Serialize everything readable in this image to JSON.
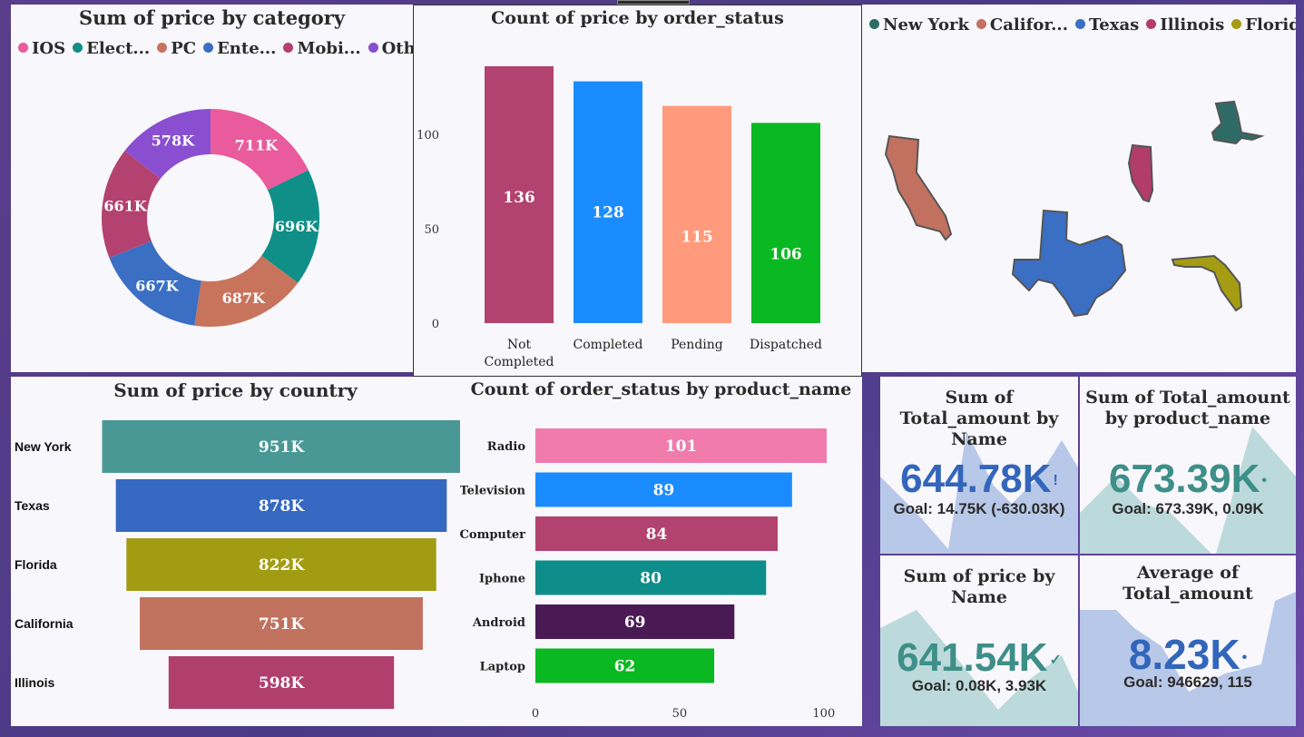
{
  "donut": {
    "title": "Sum of price by category",
    "legend": [
      {
        "label": "IOS",
        "color": "#e95b9c"
      },
      {
        "label": "Elect...",
        "color": "#0f8f87"
      },
      {
        "label": "PC",
        "color": "#c8735c"
      },
      {
        "label": "Ente...",
        "color": "#3a6fc4"
      },
      {
        "label": "Mobi...",
        "color": "#b34270"
      },
      {
        "label": "Other",
        "color": "#8a4fd1"
      }
    ]
  },
  "status_chart": {
    "title": "Count of price by order_status"
  },
  "map": {
    "legend": [
      {
        "label": "New York",
        "color": "#2f6b66"
      },
      {
        "label": "Califor...",
        "color": "#c27160"
      },
      {
        "label": "Texas",
        "color": "#3a6fc4"
      },
      {
        "label": "Illinois",
        "color": "#b33d6a"
      },
      {
        "label": "Florida",
        "color": "#a59c14"
      }
    ]
  },
  "country_chart": {
    "title": "Sum of price by country"
  },
  "product_chart": {
    "title": "Count of order_status by product_name"
  },
  "cards": [
    {
      "title": "Sum of Total_amount by Name",
      "value": "644.78K",
      "goal": "Goal: 14.75K (-630.03K)",
      "value_color": "#3366bb",
      "marker": "!"
    },
    {
      "title": "Sum of Total_amount by product_name",
      "value": "673.39K",
      "goal": "Goal: 673.39K, 0.09K",
      "value_color": "#3d8f88",
      "marker": "•"
    },
    {
      "title": "Sum of price by Name",
      "value": "641.54K",
      "goal": "Goal: 0.08K, 3.93K",
      "value_color": "#3d8f88",
      "marker": "✓"
    },
    {
      "title": "Average of Total_amount",
      "value": "8.23K",
      "goal": "Goal: 946629, 115",
      "value_color": "#3366bb",
      "marker": "•"
    }
  ],
  "chart_data": [
    {
      "type": "pie",
      "title": "Sum of price by category",
      "categories": [
        "IOS",
        "Electronics",
        "PC",
        "Entertainment",
        "Mobile",
        "Other"
      ],
      "values": [
        711,
        696,
        687,
        667,
        661,
        578
      ],
      "labels": [
        "711K",
        "696K",
        "687K",
        "667K",
        "661K",
        "578K"
      ],
      "colors": [
        "#e95b9c",
        "#0f8f87",
        "#c8735c",
        "#3a6fc4",
        "#b34270",
        "#8a4fd1"
      ]
    },
    {
      "type": "bar",
      "title": "Count of price by order_status",
      "categories": [
        "Not Completed",
        "Completed",
        "Pending",
        "Dispatched"
      ],
      "values": [
        136,
        128,
        115,
        106
      ],
      "colors": [
        "#b2426f",
        "#1b8cff",
        "#ff9a7c",
        "#0ab821"
      ],
      "yticks": [
        0,
        50,
        100
      ],
      "ylim": [
        0,
        136
      ]
    },
    {
      "type": "bar",
      "orientation": "funnel",
      "title": "Sum of price by country",
      "categories": [
        "New York",
        "Texas",
        "Florida",
        "California",
        "Illinois"
      ],
      "values": [
        951,
        878,
        822,
        751,
        598
      ],
      "labels": [
        "951K",
        "878K",
        "822K",
        "751K",
        "598K"
      ],
      "colors": [
        "#4a9896",
        "#3568c0",
        "#a19c12",
        "#c0725f",
        "#b03f6d"
      ]
    },
    {
      "type": "bar",
      "orientation": "horizontal",
      "title": "Count of order_status by product_name",
      "categories": [
        "Radio",
        "Television",
        "Computer",
        "Iphone",
        "Android",
        "Laptop"
      ],
      "values": [
        101,
        89,
        84,
        80,
        69,
        62
      ],
      "colors": [
        "#f07bac",
        "#1b8cff",
        "#b2426f",
        "#0e8e8a",
        "#4a1a55",
        "#0ab821"
      ],
      "xticks": [
        0,
        50,
        100
      ],
      "xlim": [
        0,
        101
      ]
    }
  ]
}
